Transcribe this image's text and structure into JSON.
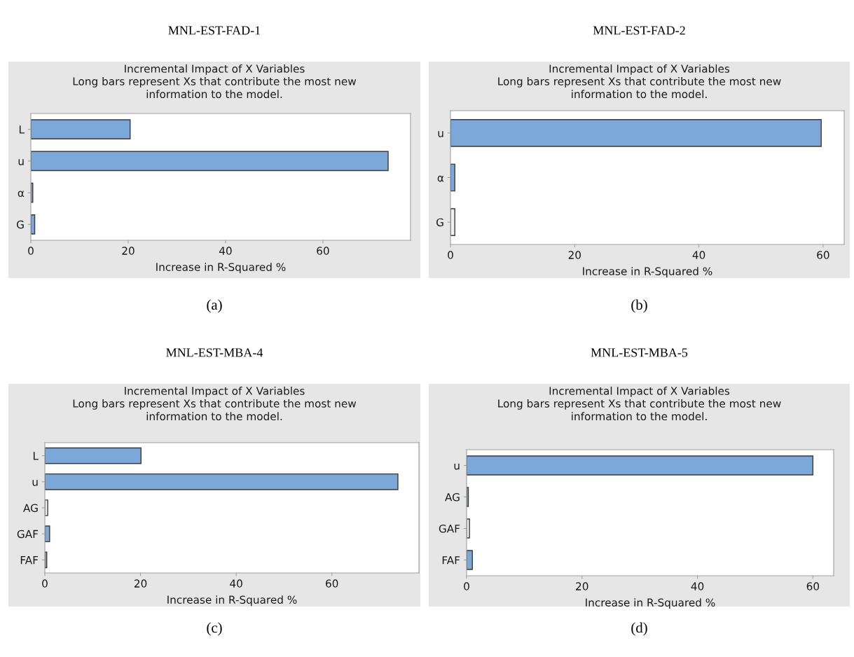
{
  "chart_data": [
    {
      "type": "bar",
      "orientation": "horizontal",
      "title": "Incremental Impact of X Variables",
      "subtitle": "Long bars represent Xs that contribute the most new\ninformation to the model.",
      "xlabel": "Increase in R-Squared %",
      "annotations": [
        "MNL-EST-FAD-1",
        "(a)"
      ],
      "categories": [
        "L",
        "u",
        "α",
        "G"
      ],
      "values": [
        20.4,
        73.4,
        0.4,
        0.8
      ],
      "colors": [
        "#7ba7d9",
        "#7ba7d9",
        "#7ba7d9",
        "#7ba7d9"
      ],
      "xlim": [
        0,
        78
      ],
      "xticks": [
        0,
        20,
        40,
        60
      ],
      "grid": false,
      "legend": false
    },
    {
      "type": "bar",
      "orientation": "horizontal",
      "title": "Incremental Impact of X Variables",
      "subtitle": "Long bars represent Xs that contribute the most new\ninformation to the model.",
      "xlabel": "Increase in R-Squared %",
      "annotations": [
        "MNL-EST-FAD-2",
        "(b)"
      ],
      "categories": [
        "u",
        "α",
        "G"
      ],
      "values": [
        59.7,
        0.7,
        0.7
      ],
      "colors": [
        "#7ba7d9",
        "#7ba7d9",
        "#f0f0f0"
      ],
      "xlim": [
        0,
        63.4
      ],
      "xticks": [
        0,
        20,
        40,
        60
      ],
      "grid": false,
      "legend": false
    },
    {
      "type": "bar",
      "orientation": "horizontal",
      "title": "Incremental Impact of X Variables",
      "subtitle": "Long bars represent Xs that contribute the most new\ninformation to the model.",
      "xlabel": "Increase in R-Squared %",
      "annotations": [
        "MNL-EST-MBA-4",
        "(c)"
      ],
      "categories": [
        "L",
        "u",
        "AG",
        "GAF",
        "FAF"
      ],
      "values": [
        20.1,
        73.8,
        0.6,
        1.0,
        0.4
      ],
      "colors": [
        "#7ba7d9",
        "#7ba7d9",
        "#f0f0f0",
        "#7ba7d9",
        "#7ba7d9"
      ],
      "xlim": [
        0,
        78.2
      ],
      "xticks": [
        0,
        20,
        40,
        60
      ],
      "grid": false,
      "legend": false
    },
    {
      "type": "bar",
      "orientation": "horizontal",
      "title": "Incremental Impact of X Variables",
      "subtitle": "Long bars represent Xs that contribute the most new\ninformation to the model.",
      "xlabel": "Increase in R-Squared %",
      "annotations": [
        "MNL-EST-MBA-5",
        "(d)"
      ],
      "categories": [
        "u",
        "AG",
        "GAF",
        "FAF"
      ],
      "values": [
        60.0,
        0.3,
        0.5,
        1.0
      ],
      "colors": [
        "#7ba7d9",
        "#7ba7d9",
        "#f0f0f0",
        "#7ba7d9"
      ],
      "xlim": [
        0,
        63.6
      ],
      "xticks": [
        0,
        20,
        40,
        60
      ],
      "grid": false,
      "legend": false
    }
  ]
}
